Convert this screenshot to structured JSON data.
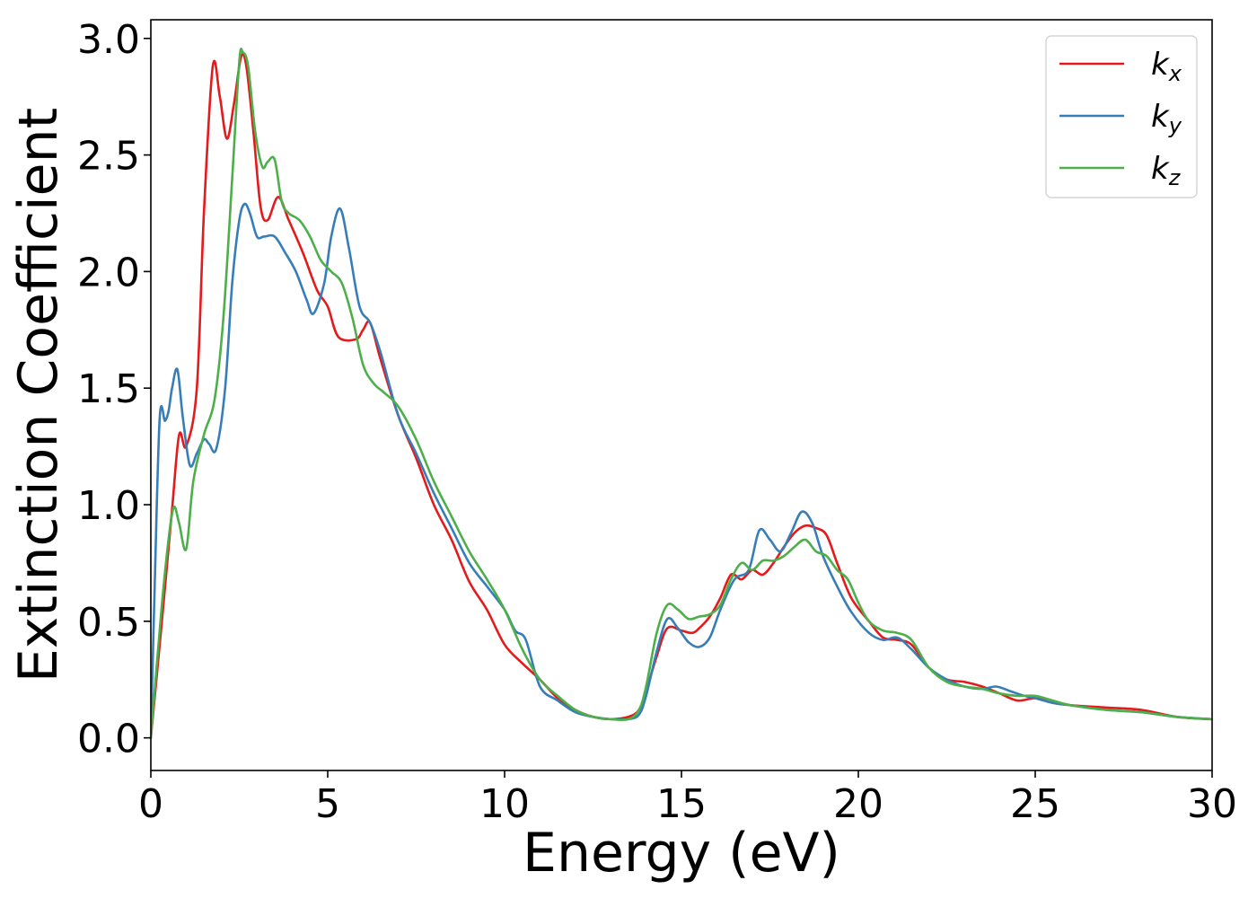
{
  "chart_data": {
    "type": "line",
    "xlabel": "Energy (eV)",
    "ylabel": "Extinction Coefficient",
    "xlim": [
      0,
      30
    ],
    "ylim": [
      -0.14,
      3.08
    ],
    "xticks": [
      0,
      5,
      10,
      15,
      20,
      25,
      30
    ],
    "xtick_labels": [
      "0",
      "5",
      "10",
      "15",
      "20",
      "25",
      "30"
    ],
    "yticks": [
      0.0,
      0.5,
      1.0,
      1.5,
      2.0,
      2.5,
      3.0
    ],
    "ytick_labels": [
      "0.0",
      "0.5",
      "1.0",
      "1.5",
      "2.0",
      "2.5",
      "3.0"
    ],
    "grid": false,
    "legend_position": "top-right",
    "series": [
      {
        "name": "k_x",
        "label_main": "k",
        "label_sub": "x",
        "color": "#e41a1c",
        "x": [
          0,
          0.3,
          0.6,
          0.8,
          1.0,
          1.3,
          1.5,
          1.75,
          1.95,
          2.15,
          2.35,
          2.55,
          2.7,
          2.9,
          3.1,
          3.3,
          3.6,
          3.9,
          4.3,
          4.7,
          5.0,
          5.3,
          5.8,
          6.0,
          6.2,
          6.5,
          7.0,
          7.5,
          8.0,
          8.5,
          9.0,
          9.5,
          10.0,
          10.5,
          11.0,
          11.5,
          12.0,
          12.5,
          13.0,
          13.5,
          13.8,
          14.0,
          14.3,
          14.6,
          15.0,
          15.3,
          15.5,
          15.8,
          16.1,
          16.4,
          16.7,
          17.0,
          17.3,
          17.6,
          17.9,
          18.2,
          18.5,
          18.8,
          19.1,
          19.4,
          19.8,
          20.3,
          20.7,
          21.1,
          21.5,
          22.0,
          22.5,
          23.0,
          23.5,
          24.0,
          24.5,
          25.0,
          25.5,
          26.0,
          27.0,
          28.0,
          29.0,
          30.0
        ],
        "y": [
          0.0,
          0.48,
          0.98,
          1.3,
          1.25,
          1.5,
          2.25,
          2.88,
          2.75,
          2.57,
          2.72,
          2.92,
          2.88,
          2.6,
          2.28,
          2.22,
          2.32,
          2.22,
          2.08,
          1.92,
          1.85,
          1.72,
          1.71,
          1.75,
          1.78,
          1.62,
          1.38,
          1.2,
          1.0,
          0.85,
          0.67,
          0.55,
          0.4,
          0.32,
          0.25,
          0.17,
          0.12,
          0.09,
          0.08,
          0.09,
          0.12,
          0.2,
          0.35,
          0.47,
          0.46,
          0.45,
          0.47,
          0.52,
          0.6,
          0.7,
          0.68,
          0.72,
          0.7,
          0.75,
          0.82,
          0.88,
          0.91,
          0.9,
          0.87,
          0.75,
          0.6,
          0.5,
          0.43,
          0.42,
          0.4,
          0.3,
          0.25,
          0.24,
          0.22,
          0.19,
          0.16,
          0.17,
          0.15,
          0.14,
          0.13,
          0.12,
          0.09,
          0.08
        ]
      },
      {
        "name": "k_y",
        "label_main": "k",
        "label_sub": "y",
        "color": "#377eb8",
        "x": [
          0,
          0.1,
          0.25,
          0.4,
          0.5,
          0.6,
          0.75,
          0.9,
          1.1,
          1.3,
          1.5,
          1.65,
          1.85,
          2.1,
          2.3,
          2.5,
          2.65,
          2.8,
          3.0,
          3.2,
          3.5,
          3.8,
          4.1,
          4.4,
          4.6,
          4.9,
          5.1,
          5.35,
          5.6,
          5.9,
          6.2,
          6.5,
          7.0,
          7.5,
          8.0,
          8.5,
          9.0,
          9.5,
          10.0,
          10.3,
          10.6,
          11.0,
          11.5,
          12.0,
          12.5,
          13.0,
          13.5,
          13.8,
          14.0,
          14.3,
          14.6,
          14.9,
          15.2,
          15.5,
          15.8,
          16.1,
          16.5,
          16.9,
          17.2,
          17.5,
          17.8,
          18.1,
          18.4,
          18.7,
          19.0,
          19.4,
          19.8,
          20.3,
          20.7,
          21.1,
          21.5,
          22.0,
          22.5,
          23.0,
          23.5,
          23.9,
          24.3,
          24.7,
          25.0,
          25.5,
          26.0,
          27.0,
          28.0,
          29.0,
          30.0
        ],
        "y": [
          0.0,
          0.6,
          1.37,
          1.36,
          1.4,
          1.5,
          1.58,
          1.38,
          1.17,
          1.22,
          1.28,
          1.26,
          1.24,
          1.5,
          1.95,
          2.22,
          2.29,
          2.25,
          2.15,
          2.15,
          2.15,
          2.08,
          2.0,
          1.88,
          1.82,
          1.95,
          2.15,
          2.27,
          2.1,
          1.85,
          1.78,
          1.65,
          1.38,
          1.22,
          1.05,
          0.9,
          0.75,
          0.65,
          0.55,
          0.46,
          0.42,
          0.22,
          0.16,
          0.11,
          0.09,
          0.08,
          0.08,
          0.1,
          0.18,
          0.37,
          0.51,
          0.47,
          0.41,
          0.39,
          0.43,
          0.55,
          0.68,
          0.72,
          0.89,
          0.85,
          0.8,
          0.88,
          0.97,
          0.92,
          0.78,
          0.65,
          0.54,
          0.45,
          0.42,
          0.43,
          0.38,
          0.3,
          0.25,
          0.22,
          0.21,
          0.22,
          0.2,
          0.18,
          0.17,
          0.15,
          0.14,
          0.12,
          0.11,
          0.09,
          0.08
        ]
      },
      {
        "name": "k_z",
        "label_main": "k",
        "label_sub": "z",
        "color": "#4daf4a",
        "x": [
          0,
          0.3,
          0.5,
          0.65,
          0.8,
          1.0,
          1.2,
          1.5,
          1.8,
          2.05,
          2.3,
          2.5,
          2.6,
          2.75,
          2.95,
          3.15,
          3.3,
          3.5,
          3.7,
          3.9,
          4.2,
          4.5,
          4.8,
          5.1,
          5.4,
          5.7,
          6.0,
          6.3,
          6.6,
          7.0,
          7.5,
          8.0,
          8.5,
          9.0,
          9.5,
          10.0,
          10.5,
          11.0,
          11.5,
          12.0,
          12.5,
          13.0,
          13.5,
          13.8,
          14.0,
          14.3,
          14.6,
          14.9,
          15.2,
          15.5,
          15.8,
          16.1,
          16.4,
          16.7,
          17.0,
          17.3,
          17.6,
          17.9,
          18.2,
          18.5,
          18.8,
          19.1,
          19.4,
          19.7,
          20.0,
          20.3,
          20.7,
          21.1,
          21.5,
          22.0,
          22.5,
          23.0,
          23.5,
          24.0,
          24.5,
          25.0,
          25.5,
          26.0,
          27.0,
          28.0,
          29.0,
          30.0
        ],
        "y": [
          0.0,
          0.55,
          0.85,
          0.99,
          0.92,
          0.81,
          1.1,
          1.3,
          1.45,
          1.8,
          2.4,
          2.9,
          2.94,
          2.88,
          2.6,
          2.45,
          2.47,
          2.48,
          2.3,
          2.25,
          2.22,
          2.15,
          2.05,
          2.0,
          1.95,
          1.8,
          1.6,
          1.52,
          1.48,
          1.42,
          1.28,
          1.1,
          0.95,
          0.8,
          0.68,
          0.55,
          0.38,
          0.25,
          0.18,
          0.12,
          0.09,
          0.08,
          0.08,
          0.12,
          0.22,
          0.45,
          0.57,
          0.55,
          0.51,
          0.52,
          0.53,
          0.57,
          0.68,
          0.75,
          0.72,
          0.76,
          0.76,
          0.78,
          0.82,
          0.85,
          0.8,
          0.78,
          0.72,
          0.68,
          0.58,
          0.5,
          0.46,
          0.45,
          0.42,
          0.3,
          0.24,
          0.22,
          0.21,
          0.19,
          0.18,
          0.18,
          0.16,
          0.14,
          0.12,
          0.11,
          0.09,
          0.08
        ]
      }
    ]
  }
}
